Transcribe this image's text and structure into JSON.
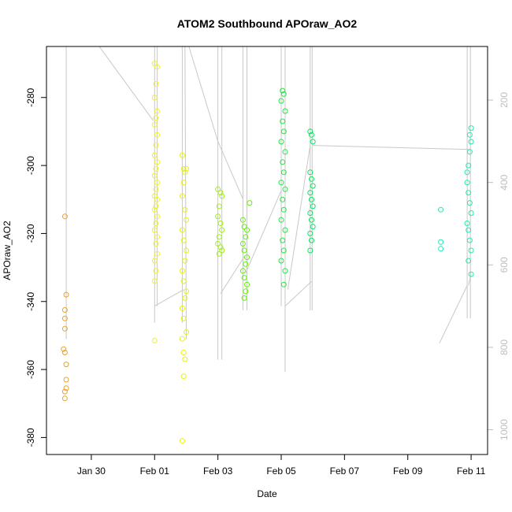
{
  "chart_data": {
    "type": "scatter",
    "title": "ATOM2 Southbound APOraw_AO2",
    "xlabel": "Date",
    "ylabel": "APOraw_AO2",
    "y2label": "",
    "xlim": [
      "2016-01-28T14:00",
      "2016-02-11T12:30"
    ],
    "ylim": [
      -385,
      -265
    ],
    "y2lim": [
      70,
      1060
    ],
    "x_ticks": [
      {
        "date": "2016-01-30",
        "label": "Jan 30"
      },
      {
        "date": "2016-02-01",
        "label": "Feb 01"
      },
      {
        "date": "2016-02-03",
        "label": "Feb 03"
      },
      {
        "date": "2016-02-05",
        "label": "Feb 05"
      },
      {
        "date": "2016-02-07",
        "label": "Feb 07"
      },
      {
        "date": "2016-02-09",
        "label": "Feb 09"
      },
      {
        "date": "2016-02-11",
        "label": "Feb 11"
      }
    ],
    "y_ticks": [
      -380,
      -360,
      -340,
      -320,
      -300,
      -280
    ],
    "y2_ticks": [
      200,
      400,
      600,
      800,
      1000
    ],
    "depth_color": "#c8c8c8",
    "depth_segments": [
      [
        [
          "2016-01-29T05:00",
          70
        ],
        [
          "2016-01-29T05:00",
          780
        ]
      ],
      [
        [
          "2016-01-30T06:00",
          70
        ],
        [
          "2016-01-31T23:00",
          250
        ]
      ],
      [
        [
          "2016-02-01T00:00",
          70
        ],
        [
          "2016-02-01T00:00",
          740
        ]
      ],
      [
        [
          "2016-02-01T02:00",
          70
        ],
        [
          "2016-02-01T02:00",
          700
        ]
      ],
      [
        [
          "2016-02-01T00:00",
          700
        ],
        [
          "2016-02-01T22:00",
          660
        ]
      ],
      [
        [
          "2016-02-01T21:00",
          70
        ],
        [
          "2016-02-01T21:00",
          740
        ]
      ],
      [
        [
          "2016-02-01T23:00",
          70
        ],
        [
          "2016-02-02T00:00",
          780
        ]
      ],
      [
        [
          "2016-02-02T02:00",
          70
        ],
        [
          "2016-02-03T00:00",
          300
        ]
      ],
      [
        [
          "2016-02-03T00:00",
          70
        ],
        [
          "2016-02-03T00:00",
          830
        ]
      ],
      [
        [
          "2016-02-03T03:00",
          70
        ],
        [
          "2016-02-03T03:00",
          830
        ]
      ],
      [
        [
          "2016-02-03T00:00",
          300
        ],
        [
          "2016-02-03T19:00",
          440
        ]
      ],
      [
        [
          "2016-02-03T02:00",
          670
        ],
        [
          "2016-02-03T20:00",
          580
        ]
      ],
      [
        [
          "2016-02-03T19:00",
          70
        ],
        [
          "2016-02-03T19:00",
          710
        ]
      ],
      [
        [
          "2016-02-03T22:00",
          70
        ],
        [
          "2016-02-03T22:00",
          710
        ]
      ],
      [
        [
          "2016-02-03T21:00",
          620
        ],
        [
          "2016-02-05T00:00",
          420
        ]
      ],
      [
        [
          "2016-02-05T00:00",
          70
        ],
        [
          "2016-02-05T00:00",
          700
        ]
      ],
      [
        [
          "2016-02-05T03:00",
          70
        ],
        [
          "2016-02-05T03:00",
          860
        ]
      ],
      [
        [
          "2016-02-05T05:00",
          660
        ],
        [
          "2016-02-05T22:00",
          310
        ]
      ],
      [
        [
          "2016-02-05T03:00",
          700
        ],
        [
          "2016-02-05T23:00",
          640
        ]
      ],
      [
        [
          "2016-02-05T22:00",
          70
        ],
        [
          "2016-02-05T22:00",
          710
        ]
      ],
      [
        [
          "2016-02-05T23:30",
          70
        ],
        [
          "2016-02-05T23:30",
          710
        ]
      ],
      [
        [
          "2016-02-06T00:00",
          310
        ],
        [
          "2016-02-10T23:00",
          320
        ]
      ],
      [
        [
          "2016-02-10T00:00",
          790
        ],
        [
          "2016-02-10T21:00",
          650
        ]
      ],
      [
        [
          "2016-02-10T21:00",
          70
        ],
        [
          "2016-02-10T21:00",
          730
        ]
      ],
      [
        [
          "2016-02-10T23:30",
          70
        ],
        [
          "2016-02-10T23:30",
          730
        ]
      ],
      [
        [
          "2016-02-10T22:00",
          650
        ],
        [
          "2016-02-11T00:00",
          620
        ]
      ]
    ],
    "groups": [
      {
        "color": "#f0a020",
        "points": [
          [
            "2016-01-29T04:00",
            -315
          ],
          [
            "2016-01-29T05:00",
            -338
          ],
          [
            "2016-01-29T04:00",
            -342.5
          ],
          [
            "2016-01-29T04:00",
            -345
          ],
          [
            "2016-01-29T04:00",
            -348
          ],
          [
            "2016-01-29T03:00",
            -354
          ],
          [
            "2016-01-29T04:00",
            -355
          ],
          [
            "2016-01-29T05:00",
            -358.5
          ],
          [
            "2016-01-29T05:00",
            -363
          ],
          [
            "2016-01-29T05:00",
            -365.5
          ],
          [
            "2016-01-29T04:00",
            -366.5
          ],
          [
            "2016-01-29T04:00",
            -368.5
          ]
        ]
      },
      {
        "color": "#f0f030",
        "points": [
          [
            "2016-02-01T00:00",
            -270
          ],
          [
            "2016-02-01T02:00",
            -271
          ],
          [
            "2016-02-01T01:00",
            -276
          ],
          [
            "2016-02-01T00:00",
            -280
          ],
          [
            "2016-02-01T02:00",
            -284
          ],
          [
            "2016-02-01T01:00",
            -286
          ],
          [
            "2016-02-01T00:00",
            -288
          ],
          [
            "2016-02-01T02:00",
            -291
          ],
          [
            "2016-02-01T01:00",
            -294
          ],
          [
            "2016-02-01T00:00",
            -297
          ],
          [
            "2016-02-01T02:00",
            -299
          ],
          [
            "2016-02-01T01:00",
            -301
          ],
          [
            "2016-02-01T00:00",
            -303
          ],
          [
            "2016-02-01T02:00",
            -305
          ],
          [
            "2016-02-01T01:00",
            -307
          ],
          [
            "2016-02-01T00:00",
            -309
          ],
          [
            "2016-02-01T02:00",
            -310
          ],
          [
            "2016-02-01T01:00",
            -312
          ],
          [
            "2016-02-01T00:00",
            -313
          ],
          [
            "2016-02-01T02:00",
            -315
          ],
          [
            "2016-02-01T01:00",
            -317
          ],
          [
            "2016-02-01T00:00",
            -319
          ],
          [
            "2016-02-01T02:00",
            -321
          ],
          [
            "2016-02-01T01:00",
            -323
          ],
          [
            "2016-02-01T02:00",
            -326
          ],
          [
            "2016-02-01T00:00",
            -328
          ],
          [
            "2016-02-01T01:00",
            -331
          ],
          [
            "2016-02-01T00:00",
            -334
          ],
          [
            "2016-02-01T00:00",
            -351.5
          ]
        ]
      },
      {
        "color": "#e8f010",
        "points": [
          [
            "2016-02-01T21:00",
            -297
          ],
          [
            "2016-02-01T22:00",
            -301
          ],
          [
            "2016-02-01T23:00",
            -302
          ],
          [
            "2016-02-02T00:00",
            -301
          ],
          [
            "2016-02-01T22:00",
            -305
          ],
          [
            "2016-02-01T21:00",
            -309
          ],
          [
            "2016-02-01T23:00",
            -313
          ],
          [
            "2016-02-02T00:00",
            -316
          ],
          [
            "2016-02-01T21:00",
            -319
          ],
          [
            "2016-02-01T22:00",
            -322
          ],
          [
            "2016-02-02T00:00",
            -325
          ],
          [
            "2016-02-01T23:00",
            -328
          ],
          [
            "2016-02-01T21:00",
            -331
          ],
          [
            "2016-02-01T22:00",
            -334
          ],
          [
            "2016-02-02T00:00",
            -337
          ],
          [
            "2016-02-01T23:00",
            -339
          ],
          [
            "2016-02-01T21:00",
            -342
          ],
          [
            "2016-02-01T22:00",
            -345
          ],
          [
            "2016-02-02T00:00",
            -349
          ],
          [
            "2016-02-01T21:00",
            -351
          ],
          [
            "2016-02-01T22:00",
            -355
          ],
          [
            "2016-02-01T23:00",
            -357
          ],
          [
            "2016-02-01T22:00",
            -362
          ],
          [
            "2016-02-01T21:00",
            -381
          ]
        ]
      },
      {
        "color": "#a0f010",
        "points": [
          [
            "2016-02-03T00:00",
            -307
          ],
          [
            "2016-02-03T02:00",
            -308
          ],
          [
            "2016-02-03T03:00",
            -309
          ],
          [
            "2016-02-03T01:00",
            -312
          ],
          [
            "2016-02-03T00:00",
            -315
          ],
          [
            "2016-02-03T02:00",
            -317
          ],
          [
            "2016-02-03T03:00",
            -319
          ],
          [
            "2016-02-03T01:00",
            -321
          ],
          [
            "2016-02-03T00:00",
            -323
          ],
          [
            "2016-02-03T02:00",
            -324
          ],
          [
            "2016-02-03T03:00",
            -325
          ],
          [
            "2016-02-03T01:00",
            -326
          ]
        ]
      },
      {
        "color": "#60f010",
        "points": [
          [
            "2016-02-03T19:00",
            -316
          ],
          [
            "2016-02-03T20:00",
            -318
          ],
          [
            "2016-02-03T22:00",
            -319
          ],
          [
            "2016-02-04T00:00",
            -311
          ],
          [
            "2016-02-03T21:00",
            -321
          ],
          [
            "2016-02-03T19:00",
            -323
          ],
          [
            "2016-02-03T20:00",
            -325
          ],
          [
            "2016-02-03T22:00",
            -327
          ],
          [
            "2016-02-03T21:00",
            -329
          ],
          [
            "2016-02-03T19:00",
            -331
          ],
          [
            "2016-02-03T20:00",
            -333
          ],
          [
            "2016-02-03T22:00",
            -335
          ],
          [
            "2016-02-03T21:00",
            -337
          ],
          [
            "2016-02-03T20:00",
            -339
          ]
        ]
      },
      {
        "color": "#20e840",
        "points": [
          [
            "2016-02-05T01:00",
            -278
          ],
          [
            "2016-02-05T02:00",
            -279
          ],
          [
            "2016-02-05T00:00",
            -281
          ],
          [
            "2016-02-05T03:00",
            -284
          ],
          [
            "2016-02-05T01:00",
            -287
          ],
          [
            "2016-02-05T02:00",
            -290
          ],
          [
            "2016-02-05T00:00",
            -293
          ],
          [
            "2016-02-05T03:00",
            -296
          ],
          [
            "2016-02-05T01:00",
            -299
          ],
          [
            "2016-02-05T02:00",
            -302
          ],
          [
            "2016-02-05T00:00",
            -305
          ],
          [
            "2016-02-05T03:00",
            -307
          ],
          [
            "2016-02-05T01:00",
            -310
          ],
          [
            "2016-02-05T02:00",
            -313
          ],
          [
            "2016-02-05T00:00",
            -316
          ],
          [
            "2016-02-05T03:00",
            -319
          ],
          [
            "2016-02-05T01:00",
            -322
          ],
          [
            "2016-02-05T02:00",
            -325
          ],
          [
            "2016-02-05T00:00",
            -328
          ],
          [
            "2016-02-05T03:00",
            -331
          ],
          [
            "2016-02-05T02:00",
            -335
          ]
        ]
      },
      {
        "color": "#10e060",
        "points": [
          [
            "2016-02-05T22:00",
            -290
          ],
          [
            "2016-02-05T23:00",
            -291
          ],
          [
            "2016-02-06T00:00",
            -293
          ],
          [
            "2016-02-05T22:00",
            -302
          ],
          [
            "2016-02-05T23:00",
            -304
          ],
          [
            "2016-02-06T00:00",
            -306
          ],
          [
            "2016-02-05T22:00",
            -308
          ],
          [
            "2016-02-05T23:00",
            -310
          ],
          [
            "2016-02-06T00:00",
            -312
          ],
          [
            "2016-02-05T22:00",
            -314
          ],
          [
            "2016-02-05T23:00",
            -316
          ],
          [
            "2016-02-06T00:00",
            -318
          ],
          [
            "2016-02-05T22:00",
            -320
          ],
          [
            "2016-02-05T23:00",
            -322
          ],
          [
            "2016-02-05T22:00",
            -325
          ]
        ]
      },
      {
        "color": "#20e8b0",
        "points": [
          [
            "2016-02-10T01:00",
            -313
          ],
          [
            "2016-02-10T01:00",
            -322.5
          ],
          [
            "2016-02-10T01:00",
            -324.5
          ],
          [
            "2016-02-10T21:00",
            -302
          ],
          [
            "2016-02-10T22:00",
            -300
          ],
          [
            "2016-02-10T23:00",
            -296
          ],
          [
            "2016-02-11T00:00",
            -289
          ],
          [
            "2016-02-10T23:00",
            -291
          ],
          [
            "2016-02-11T00:00",
            -293
          ],
          [
            "2016-02-10T21:00",
            -305
          ],
          [
            "2016-02-10T22:00",
            -308
          ],
          [
            "2016-02-10T23:00",
            -311
          ],
          [
            "2016-02-11T00:00",
            -314
          ],
          [
            "2016-02-10T21:00",
            -317
          ],
          [
            "2016-02-10T22:00",
            -319
          ],
          [
            "2016-02-10T23:00",
            -322
          ],
          [
            "2016-02-11T00:00",
            -325
          ],
          [
            "2016-02-10T22:00",
            -328
          ],
          [
            "2016-02-11T00:00",
            -332
          ]
        ]
      }
    ]
  }
}
